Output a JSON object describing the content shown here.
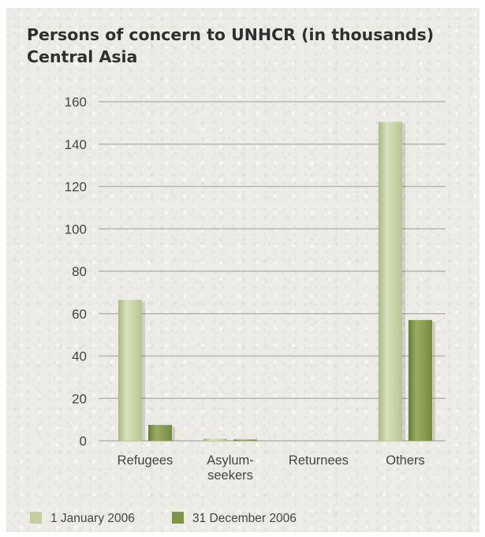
{
  "chart_data": {
    "type": "bar",
    "title_lines": [
      "Persons of concern to UNHCR (in thousands)",
      "Central Asia"
    ],
    "xlabel": "",
    "ylabel": "",
    "categories": [
      [
        "Refugees"
      ],
      [
        "Asylum-",
        "seekers"
      ],
      [
        "Returnees"
      ],
      [
        "Others"
      ]
    ],
    "series": [
      {
        "name": "1 January 2006",
        "color": "#c3cf9f",
        "values": [
          66.5,
          1,
          0,
          150.5
        ]
      },
      {
        "name": "31 December 2006",
        "color": "#7f9447",
        "values": [
          7.5,
          0.6,
          0,
          57
        ]
      }
    ],
    "ylim": [
      0,
      160
    ],
    "yticks": [
      "0",
      "20",
      "40",
      "60",
      "80",
      "100",
      "120",
      "140",
      "160"
    ],
    "grid": true,
    "legend_position": "bottom-left"
  }
}
